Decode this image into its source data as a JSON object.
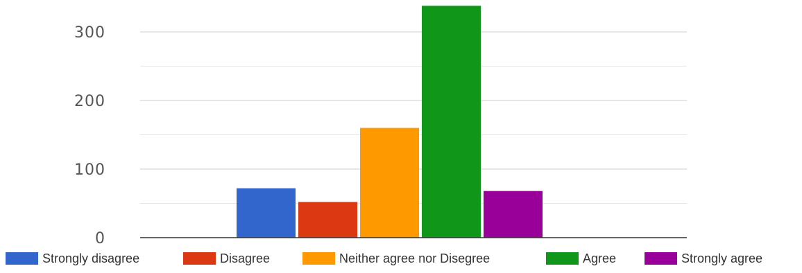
{
  "chart_data": {
    "type": "bar",
    "title": "",
    "xlabel": "",
    "ylabel": "",
    "categories": [
      "Strongly disagree",
      "Disagree",
      "Neither agree nor Disegree",
      "Agree",
      "Strongly agree"
    ],
    "values": [
      72,
      52,
      160,
      338,
      68
    ],
    "ylim": [
      0,
      340
    ],
    "yticks": [
      0,
      100,
      200,
      300
    ],
    "minor_ticks": [
      50,
      150,
      250
    ],
    "grid": true,
    "legend_position": "bottom",
    "colors": [
      "#3366cc",
      "#dc3912",
      "#ff9900",
      "#109618",
      "#990099"
    ],
    "legend": [
      {
        "label": "Strongly disagree",
        "color": "#3366cc"
      },
      {
        "label": "Disagree",
        "color": "#dc3912"
      },
      {
        "label": "Neither agree nor Disegree",
        "color": "#ff9900"
      },
      {
        "label": "Agree",
        "color": "#109618"
      },
      {
        "label": "Strongly agree",
        "color": "#990099"
      }
    ]
  }
}
